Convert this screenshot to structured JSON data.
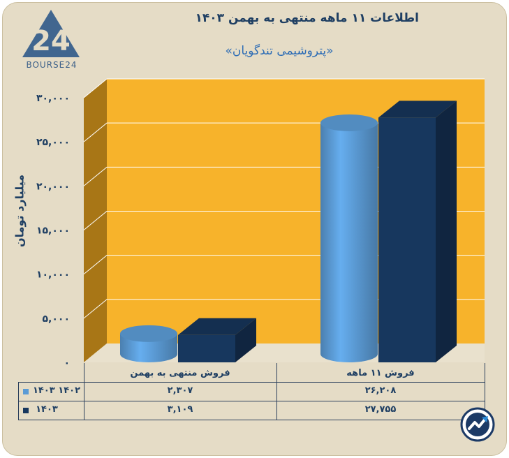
{
  "header": {
    "title": "اطلاعات ۱۱ ماهه منتهی به بهمن ۱۴۰۳",
    "subtitle": "«پتروشیمی تندگویان»",
    "logo_text": "BOURSE24"
  },
  "chart_data": {
    "type": "bar",
    "ylabel": "میلیارد تومان",
    "ylim": [
      0,
      30000
    ],
    "yticks": [
      "۰",
      "۵,۰۰۰",
      "۱۰,۰۰۰",
      "۱۵,۰۰۰",
      "۲۰,۰۰۰",
      "۲۵,۰۰۰",
      "۳۰,۰۰۰"
    ],
    "categories": [
      "فروش منتهی به  بهمن",
      "فروش ۱۱  ماهه"
    ],
    "series": [
      {
        "name": "۱۴۰۲ ۱۴۰۳",
        "color": "#5b9bd5",
        "shape": "cylinder",
        "values": [
          2307,
          26208
        ],
        "labels": [
          "۲,۳۰۷",
          "۲۶,۲۰۸"
        ]
      },
      {
        "name": "۱۴۰۳",
        "color": "#17375e",
        "shape": "box",
        "values": [
          3109,
          27755
        ],
        "labels": [
          "۳,۱۰۹",
          "۲۷,۷۵۵"
        ]
      }
    ],
    "grid": true,
    "legend": "table-left"
  },
  "colors": {
    "background": "#e5dcc6",
    "wall": "#f7b32b",
    "side_wall": "#a87616",
    "floor": "#e9e1cd",
    "title": "#1f3f63",
    "subtitle": "#2e6db5"
  }
}
